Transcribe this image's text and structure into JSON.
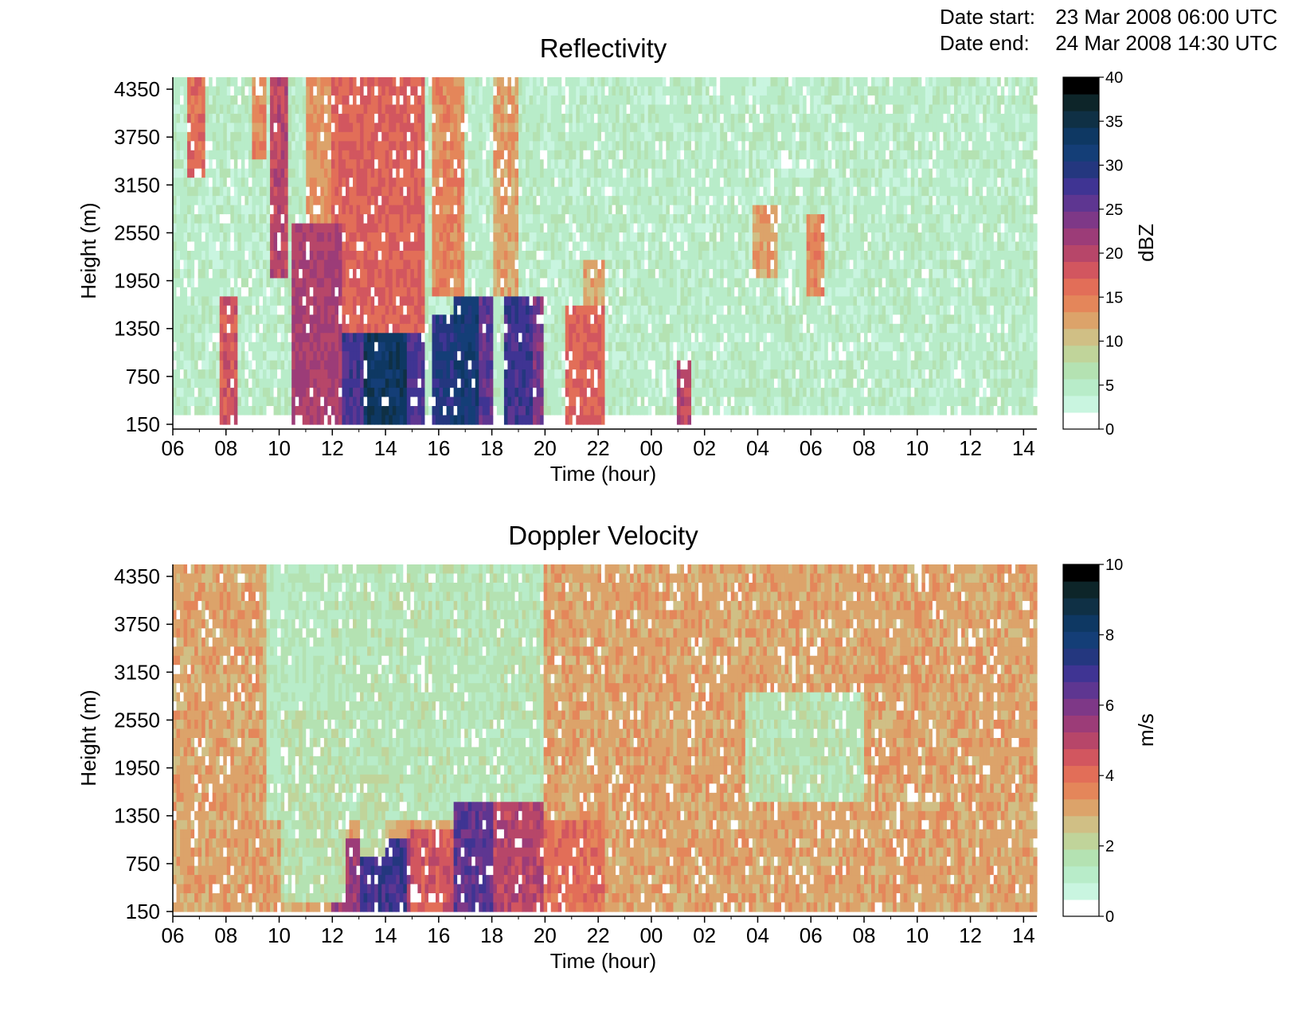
{
  "header": {
    "start_label": "Date start:",
    "start_value": "23 Mar 2008 06:00 UTC",
    "end_label": "Date end:",
    "end_value": "24 Mar 2008 14:30 UTC"
  },
  "colormap": [
    "#ffffff",
    "#c9f5e0",
    "#b8ecc9",
    "#b4e2b2",
    "#c0d49a",
    "#d0bf85",
    "#dca36a",
    "#e4865a",
    "#e26e58",
    "#d2565f",
    "#b74669",
    "#9c3c78",
    "#7e3887",
    "#5e3691",
    "#3f3493",
    "#24377f",
    "#143e77",
    "#0e3863",
    "#0f3045",
    "#0d2529",
    "#000000"
  ],
  "chart_data": [
    {
      "type": "heatmap",
      "title": "Reflectivity",
      "xlabel": "Time (hour)",
      "ylabel": "Height (m)",
      "x_start": "2008-03-23 06:00 UTC",
      "x_end": "2008-03-24 14:30 UTC",
      "x_ticks": [
        "06",
        "08",
        "10",
        "12",
        "14",
        "16",
        "18",
        "20",
        "22",
        "00",
        "02",
        "04",
        "06",
        "08",
        "10",
        "12",
        "14"
      ],
      "y_ticks": [
        "150",
        "750",
        "1350",
        "1950",
        "2550",
        "3150",
        "3750",
        "4350"
      ],
      "ylim": [
        150,
        4500
      ],
      "colorbar_label": "dBZ",
      "colorbar_ticks": [
        "0",
        "5",
        "10",
        "15",
        "20",
        "25",
        "30",
        "35",
        "40"
      ],
      "colorbar_range": [
        0,
        40
      ],
      "background_value": 4,
      "features": [
        {
          "t_start": 6.5,
          "t_end": 7.2,
          "h_bottom": 3200,
          "h_top": 4500,
          "value": 16
        },
        {
          "t_start": 9.0,
          "t_end": 9.5,
          "h_bottom": 3500,
          "h_top": 4500,
          "value": 14
        },
        {
          "t_start": 9.7,
          "t_end": 10.3,
          "h_bottom": 1950,
          "h_top": 4500,
          "value": 20
        },
        {
          "t_start": 11.0,
          "t_end": 12.0,
          "h_bottom": 1950,
          "h_top": 4500,
          "value": 13
        },
        {
          "t_start": 12.0,
          "t_end": 13.2,
          "h_bottom": 150,
          "h_top": 1350,
          "value": 28
        },
        {
          "t_start": 12.0,
          "t_end": 15.5,
          "h_bottom": 1350,
          "h_top": 4500,
          "value": 17
        },
        {
          "t_start": 13.2,
          "t_end": 14.8,
          "h_bottom": 150,
          "h_top": 1350,
          "value": 34
        },
        {
          "t_start": 14.8,
          "t_end": 15.5,
          "h_bottom": 150,
          "h_top": 1350,
          "value": 27
        },
        {
          "t_start": 15.8,
          "t_end": 16.5,
          "h_bottom": 150,
          "h_top": 1500,
          "value": 30
        },
        {
          "t_start": 16.5,
          "t_end": 17.5,
          "h_bottom": 150,
          "h_top": 1800,
          "value": 32
        },
        {
          "t_start": 15.8,
          "t_end": 17.0,
          "h_bottom": 1800,
          "h_top": 4500,
          "value": 14
        },
        {
          "t_start": 17.5,
          "t_end": 18.0,
          "h_bottom": 150,
          "h_top": 1800,
          "value": 26
        },
        {
          "t_start": 18.5,
          "t_end": 19.5,
          "h_bottom": 150,
          "h_top": 1800,
          "value": 28
        },
        {
          "t_start": 19.5,
          "t_end": 20.0,
          "h_bottom": 150,
          "h_top": 1800,
          "value": 24
        },
        {
          "t_start": 18.0,
          "t_end": 19.0,
          "h_bottom": 1800,
          "h_top": 4500,
          "value": 12
        },
        {
          "t_start": 20.7,
          "t_end": 22.2,
          "h_bottom": 150,
          "h_top": 1600,
          "value": 17
        },
        {
          "t_start": 21.5,
          "t_end": 22.2,
          "h_bottom": 1600,
          "h_top": 2200,
          "value": 12
        },
        {
          "t_start": 1.0,
          "t_end": 1.5,
          "h_bottom": 150,
          "h_top": 1000,
          "value": 20
        },
        {
          "t_start": 3.8,
          "t_end": 4.8,
          "h_bottom": 2000,
          "h_top": 2900,
          "value": 12
        },
        {
          "t_start": 5.8,
          "t_end": 6.5,
          "h_bottom": 1800,
          "h_top": 2800,
          "value": 14
        },
        {
          "t_start": 7.8,
          "t_end": 8.4,
          "h_bottom": 150,
          "h_top": 1800,
          "value": 18
        },
        {
          "t_start": 10.5,
          "t_end": 12.3,
          "h_bottom": 150,
          "h_top": 2700,
          "value": 21
        }
      ]
    },
    {
      "type": "heatmap",
      "title": "Doppler Velocity",
      "xlabel": "Time (hour)",
      "ylabel": "Height (m)",
      "x_start": "2008-03-23 06:00 UTC",
      "x_end": "2008-03-24 14:30 UTC",
      "x_ticks": [
        "06",
        "08",
        "10",
        "12",
        "14",
        "16",
        "18",
        "20",
        "22",
        "00",
        "02",
        "04",
        "06",
        "08",
        "10",
        "12",
        "14"
      ],
      "y_ticks": [
        "150",
        "750",
        "1350",
        "1950",
        "2550",
        "3150",
        "3750",
        "4350"
      ],
      "ylim": [
        150,
        4500
      ],
      "colorbar_label": "m/s",
      "colorbar_ticks": [
        "0",
        "2",
        "4",
        "6",
        "8",
        "10"
      ],
      "colorbar_range": [
        0,
        10
      ],
      "background_value": 3,
      "features": [
        {
          "t_start": 9.5,
          "t_end": 12.0,
          "h_bottom": 1350,
          "h_top": 4500,
          "value": 1.2
        },
        {
          "t_start": 12.0,
          "t_end": 20.0,
          "h_bottom": 1350,
          "h_top": 4500,
          "value": 1.4
        },
        {
          "t_start": 12.0,
          "t_end": 15.0,
          "h_bottom": 150,
          "h_top": 1050,
          "value": 5.5
        },
        {
          "t_start": 13.0,
          "t_end": 14.8,
          "h_bottom": 150,
          "h_top": 1050,
          "value": 7.0
        },
        {
          "t_start": 15.0,
          "t_end": 16.5,
          "h_bottom": 150,
          "h_top": 1200,
          "value": 4.5
        },
        {
          "t_start": 16.5,
          "t_end": 18.0,
          "h_bottom": 150,
          "h_top": 1500,
          "value": 6.5
        },
        {
          "t_start": 18.0,
          "t_end": 20.0,
          "h_bottom": 150,
          "h_top": 1500,
          "value": 5.0
        },
        {
          "t_start": 20.0,
          "t_end": 22.2,
          "h_bottom": 150,
          "h_top": 1300,
          "value": 4.0
        },
        {
          "t_start": 3.5,
          "t_end": 8.0,
          "h_bottom": 1500,
          "h_top": 2900,
          "value": 1.5
        },
        {
          "t_start": 10.0,
          "t_end": 12.5,
          "h_bottom": 300,
          "h_top": 2700,
          "value": 1.6
        },
        {
          "t_start": 13.0,
          "t_end": 14.0,
          "h_bottom": 800,
          "h_top": 1900,
          "value": 1.8
        }
      ]
    }
  ]
}
